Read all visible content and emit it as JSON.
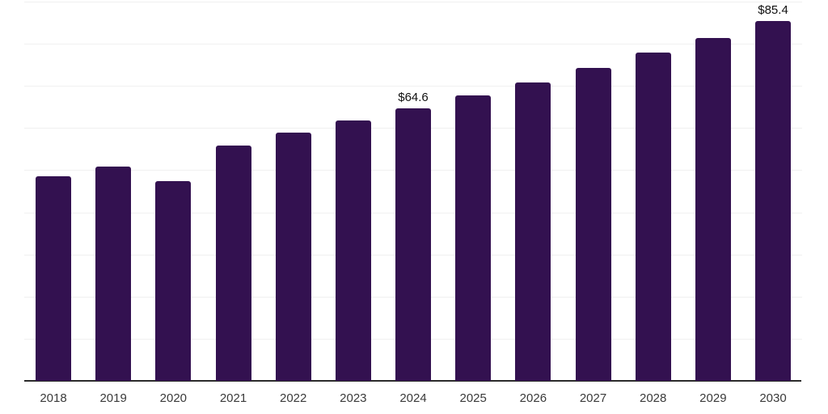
{
  "chart_data": {
    "type": "bar",
    "title": "",
    "xlabel": "",
    "ylabel": "",
    "categories": [
      "2018",
      "2019",
      "2020",
      "2021",
      "2022",
      "2023",
      "2024",
      "2025",
      "2026",
      "2027",
      "2028",
      "2029",
      "2030"
    ],
    "values": [
      48.5,
      50.8,
      47.4,
      55.8,
      58.9,
      61.7,
      64.6,
      67.7,
      70.9,
      74.3,
      78.0,
      81.4,
      85.4
    ],
    "data_labels": [
      "",
      "",
      "",
      "",
      "",
      "",
      "$64.6",
      "",
      "",
      "",
      "",
      "",
      "$85.4"
    ],
    "ylim": [
      0,
      90
    ],
    "gridline_step": 10,
    "grid": "horizontal",
    "legend": "none",
    "y_tick_labels_visible": false
  },
  "colors": {
    "bar": "#331150",
    "gridline": "#f0f0f0",
    "axis_line": "#2b2b2b",
    "tick_label": "#3a3a3a",
    "data_label": "#111111",
    "background": "#ffffff"
  }
}
